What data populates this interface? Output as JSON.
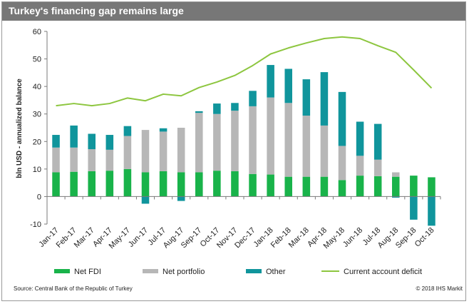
{
  "title": "Turkey's financing gap remains large",
  "source": "Source:  Central Bank of the Republic of Turkey",
  "copyright": "© 2018 IHS Markit",
  "chart_data": {
    "type": "bar",
    "stacked": true,
    "ylabel": "bln USD - annualized balance",
    "ylim": [
      -10,
      60
    ],
    "yticks": [
      -10,
      0,
      10,
      20,
      30,
      40,
      50,
      60
    ],
    "grid": false,
    "legend_position": "bottom",
    "categories": [
      "Jan-17",
      "Feb-17",
      "Mar-17",
      "Apr-17",
      "May-17",
      "Jun-17",
      "Jul-17",
      "Aug-17",
      "Sep-17",
      "Oct-17",
      "Nov-17",
      "Dec-17",
      "Jan-18",
      "Feb-18",
      "Mar-18",
      "Apr-18",
      "May-18",
      "Jun-18",
      "Jul-18",
      "Aug-18",
      "Sep-18",
      "Oct-18"
    ],
    "series": [
      {
        "name": "Net FDI",
        "type": "bar",
        "color": "#19b34a",
        "values": [
          8.8,
          9.0,
          9.2,
          9.4,
          10.0,
          8.8,
          9.2,
          8.8,
          8.8,
          9.4,
          9.2,
          8.2,
          8.0,
          7.2,
          7.2,
          7.2,
          6.0,
          7.6,
          7.4,
          7.2,
          7.6,
          7.0
        ]
      },
      {
        "name": "Net portfolio",
        "type": "bar",
        "color": "#b7b7b7",
        "values": [
          9.0,
          8.8,
          8.0,
          7.6,
          12.0,
          15.4,
          14.4,
          16.2,
          21.6,
          20.6,
          22.0,
          24.6,
          28.0,
          26.8,
          22.2,
          18.6,
          12.4,
          7.2,
          6.0,
          1.6,
          0,
          0
        ]
      },
      {
        "name": "Other",
        "type": "bar",
        "color": "#10959c",
        "values": [
          4.6,
          8.0,
          5.6,
          5.4,
          3.6,
          -2.6,
          1.2,
          -1.6,
          0.6,
          3.8,
          2.8,
          5.6,
          11.8,
          12.4,
          13.2,
          19.4,
          19.6,
          12.4,
          13.0,
          -0.4,
          -8.4,
          -10.6
        ]
      },
      {
        "name": "Current account deficit",
        "type": "line",
        "color": "#8dc63f",
        "values": [
          33.0,
          33.8,
          33.0,
          33.8,
          35.8,
          34.8,
          37.2,
          36.6,
          39.6,
          41.6,
          44.0,
          47.6,
          51.8,
          54.0,
          55.8,
          57.4,
          58.0,
          57.4,
          54.8,
          52.4,
          46.0,
          39.4
        ]
      }
    ]
  }
}
